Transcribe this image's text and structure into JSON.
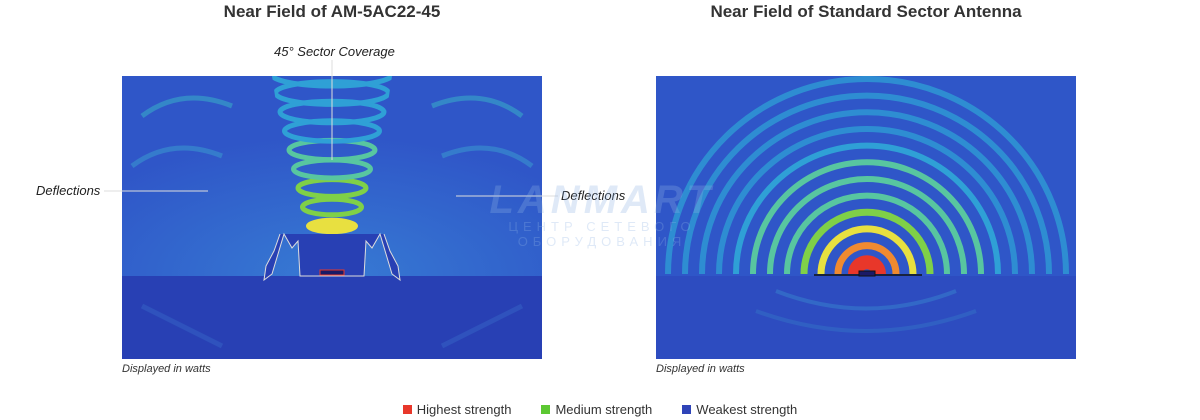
{
  "titles": {
    "left": "Near Field of AM-5AC22-45",
    "right": "Near Field of Standard Sector Antenna"
  },
  "annotations": {
    "sector_coverage": "45° Sector Coverage",
    "deflections_left": "Deflections",
    "deflections_right": "Deflections"
  },
  "captions": {
    "left": "Displayed in watts",
    "right": "Displayed in watts"
  },
  "watermark": {
    "logo": "LANMART",
    "subtitle": "ЦЕНТР СЕТЕВОГО ОБОРУДОВАНИЯ"
  },
  "legend": [
    {
      "label": "Highest strength",
      "color": "#e8372a"
    },
    {
      "label": "Medium strength",
      "color": "#5cc832"
    },
    {
      "label": "Weakest strength",
      "color": "#2f44b8"
    }
  ],
  "colors": {
    "background_field": "#2f56c8",
    "deep_field": "#2840b4",
    "weak_ring": "#2fa0d6",
    "medium_ring": "#58c6a0",
    "green_ring": "#7fd048",
    "yellow_ring": "#e8e040",
    "orange_ring": "#f08a30",
    "core": "#e8372a"
  }
}
